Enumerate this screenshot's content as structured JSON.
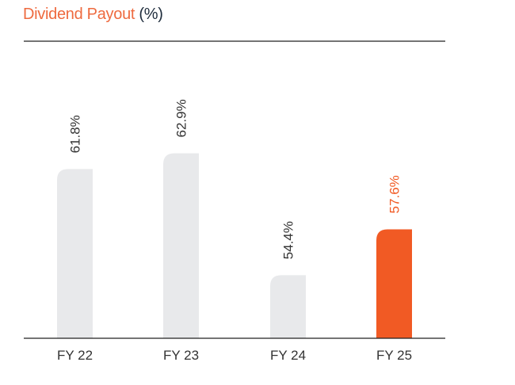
{
  "chart_data": {
    "type": "bar",
    "title": "Dividend Payout",
    "title_unit": "(%)",
    "categories": [
      "FY 22",
      "FY 23",
      "FY 24",
      "FY 25"
    ],
    "values": [
      61.8,
      62.9,
      54.4,
      57.6
    ],
    "data_labels": [
      "61.8%",
      "62.9%",
      "54.4%",
      "57.6%"
    ],
    "ylim": [
      50,
      70
    ],
    "grid": false,
    "colors": {
      "default": "#e8e9eb",
      "highlight": "#f15a24",
      "label": "#333333",
      "highlight_label": "#f15a24",
      "title": "#ee6a3f"
    },
    "highlight_index": 3
  }
}
